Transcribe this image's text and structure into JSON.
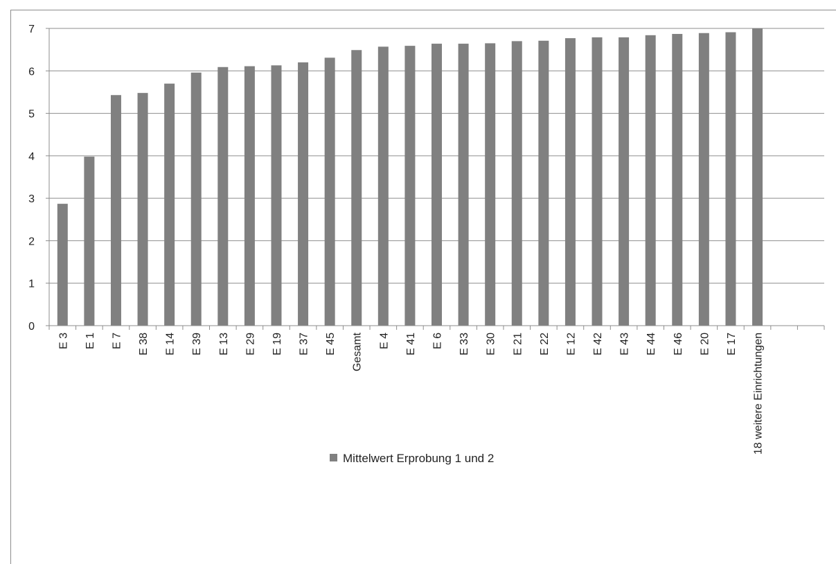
{
  "chart_data": {
    "type": "bar",
    "categories": [
      "E 3",
      "E 1",
      "E 7",
      "E 38",
      "E 14",
      "E 39",
      "E 13",
      "E 29",
      "E 19",
      "E 37",
      "E 45",
      "Gesamt",
      "E 4",
      "E 41",
      "E 6",
      "E 33",
      "E 30",
      "E 21",
      "E 22",
      "E 12",
      "E 42",
      "E 43",
      "E 44",
      "E 46",
      "E 20",
      "E 17",
      "18 weitere Einrichtungen",
      "",
      ""
    ],
    "series": [
      {
        "name": "Mittelwert Erprobung 1 und 2",
        "color": "#808080",
        "values": [
          2.87,
          3.98,
          5.43,
          5.48,
          5.7,
          5.96,
          6.09,
          6.11,
          6.13,
          6.2,
          6.31,
          6.49,
          6.57,
          6.59,
          6.64,
          6.64,
          6.65,
          6.7,
          6.71,
          6.77,
          6.79,
          6.79,
          6.84,
          6.87,
          6.89,
          6.91,
          7.0,
          null,
          null
        ]
      }
    ],
    "yticks": [
      "0",
      "1",
      "2",
      "3",
      "4",
      "5",
      "6",
      "7"
    ],
    "ylim": [
      0,
      7
    ],
    "grid": true,
    "legend_position": "bottom-center"
  }
}
